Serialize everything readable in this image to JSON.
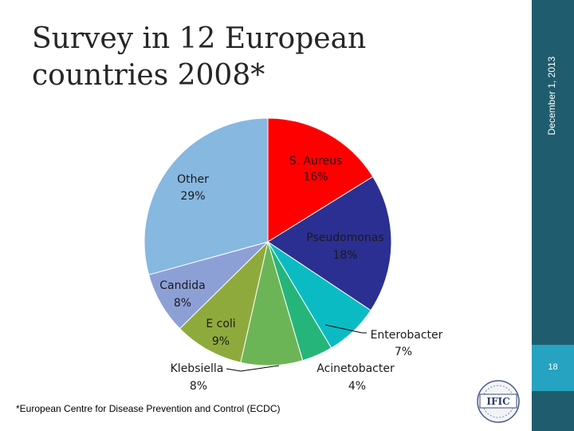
{
  "slide": {
    "title_line1": "Survey in 12 European",
    "title_line2": "countries 2008*",
    "date": "December 1, 2013",
    "page_number": "18",
    "footnote": "*European Centre for Disease Prevention and Control (ECDC)",
    "logo_text": "IFIC"
  },
  "chart_data": {
    "type": "pie",
    "title": "Survey in 12 European countries 2008*",
    "slices": [
      {
        "name": "S. Aureus",
        "value": 16,
        "label": "16%",
        "color": "#ff0000"
      },
      {
        "name": "Pseudomonas",
        "value": 18,
        "label": "18%",
        "color": "#2b2f91"
      },
      {
        "name": "Enterobacter",
        "value": 7,
        "label": "7%",
        "color": "#0bbbc4"
      },
      {
        "name": "Acinetobacter",
        "value": 4,
        "label": "4%",
        "color": "#25b57a"
      },
      {
        "name": "Klebsiella",
        "value": 8,
        "label": "8%",
        "color": "#6cb557"
      },
      {
        "name": "E coli",
        "value": 9,
        "label": "9%",
        "color": "#8faa3c"
      },
      {
        "name": "Candida",
        "value": 8,
        "label": "8%",
        "color": "#8da0d6"
      },
      {
        "name": "Other",
        "value": 29,
        "label": "29%",
        "color": "#86b8e0"
      }
    ]
  }
}
